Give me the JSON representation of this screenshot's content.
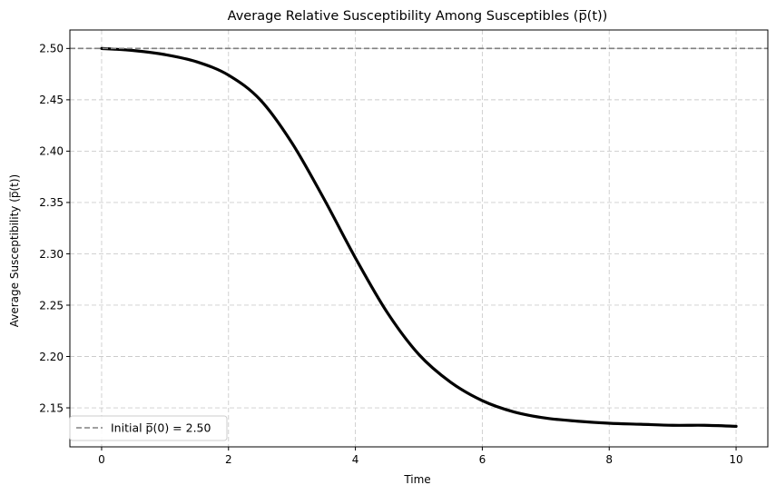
{
  "chart_data": {
    "type": "line",
    "title": "Average Relative Susceptibility Among Susceptibles (p̅(t))",
    "xlabel": "Time",
    "ylabel": "Average Susceptibility (p̅(t))",
    "xlim": [
      -0.5,
      10.5
    ],
    "ylim": [
      2.112,
      2.518
    ],
    "xticks": [
      0,
      2,
      4,
      6,
      8,
      10
    ],
    "yticks": [
      2.15,
      2.2,
      2.25,
      2.3,
      2.35,
      2.4,
      2.45,
      2.5
    ],
    "xtick_labels": [
      "0",
      "2",
      "4",
      "6",
      "8",
      "10"
    ],
    "ytick_labels": [
      "2.15",
      "2.20",
      "2.25",
      "2.30",
      "2.35",
      "2.40",
      "2.45",
      "2.50"
    ],
    "grid": true,
    "legend_position": "lower-left",
    "series": [
      {
        "style": "solid",
        "color": "#000000",
        "x": [
          0,
          0.5,
          1,
          1.5,
          2,
          2.5,
          3,
          3.5,
          4,
          4.5,
          5,
          5.5,
          6,
          6.5,
          7,
          7.5,
          8,
          8.5,
          9,
          9.5,
          10
        ],
        "y": [
          2.5,
          2.498,
          2.494,
          2.487,
          2.474,
          2.45,
          2.408,
          2.354,
          2.296,
          2.243,
          2.202,
          2.175,
          2.157,
          2.146,
          2.14,
          2.137,
          2.135,
          2.134,
          2.133,
          2.133,
          2.132
        ]
      }
    ],
    "reference_line": {
      "name": "Initial p̅(0) = 2.50",
      "y": 2.5,
      "style": "dashed",
      "color": "#808080"
    }
  }
}
